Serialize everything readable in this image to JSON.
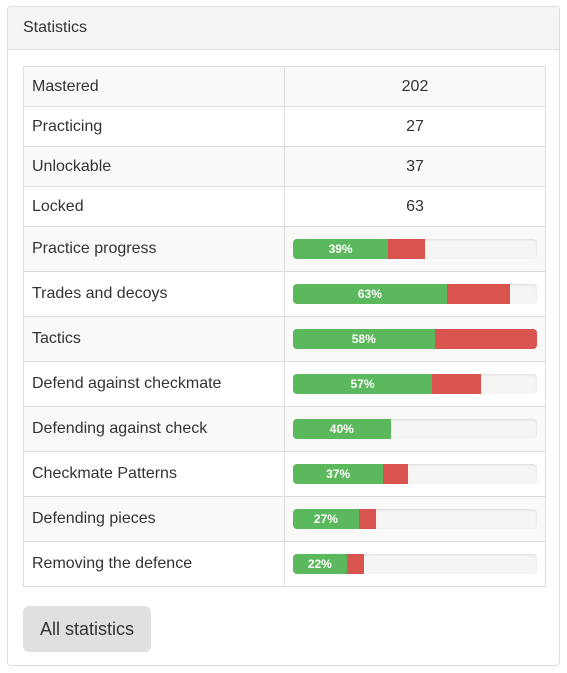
{
  "panel": {
    "title": "Statistics"
  },
  "counts": [
    {
      "label": "Mastered",
      "value": "202"
    },
    {
      "label": "Practicing",
      "value": "27"
    },
    {
      "label": "Unlockable",
      "value": "37"
    },
    {
      "label": "Locked",
      "value": "63"
    }
  ],
  "progress_rows": [
    {
      "label": "Practice progress",
      "green_label": "39%",
      "green_pct": 39,
      "red_pct": 15
    },
    {
      "label": "Trades and decoys",
      "green_label": "63%",
      "green_pct": 63,
      "red_pct": 26
    },
    {
      "label": "Tactics",
      "green_label": "58%",
      "green_pct": 58,
      "red_pct": 42
    },
    {
      "label": "Defend against checkmate",
      "green_label": "57%",
      "green_pct": 57,
      "red_pct": 20
    },
    {
      "label": "Defending against check",
      "green_label": "40%",
      "green_pct": 40,
      "red_pct": 0
    },
    {
      "label": "Checkmate Patterns",
      "green_label": "37%",
      "green_pct": 37,
      "red_pct": 10
    },
    {
      "label": "Defending pieces",
      "green_label": "27%",
      "green_pct": 27,
      "red_pct": 7
    },
    {
      "label": "Removing the defence",
      "green_label": "22%",
      "green_pct": 22,
      "red_pct": 7
    }
  ],
  "colors": {
    "success": "#5cb85c",
    "danger": "#d9534f",
    "track": "#f5f5f5"
  },
  "footer": {
    "button_label": "All statistics"
  }
}
